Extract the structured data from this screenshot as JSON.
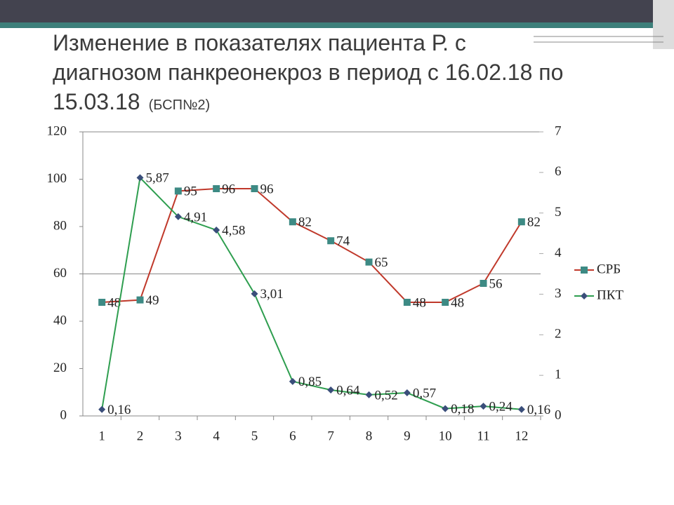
{
  "chart_data": {
    "type": "line",
    "title": "Изменение в показателях пациента Р. с диагнозом панкреонекроз в период с 16.02.18 по 15.03.18",
    "subtitle": "(БСП№2)",
    "categories": [
      "1",
      "2",
      "3",
      "4",
      "5",
      "6",
      "7",
      "8",
      "9",
      "10",
      "11",
      "12"
    ],
    "series": [
      {
        "name": "СРБ",
        "color": "#c0392b",
        "marker_color": "#3d8a84",
        "values": [
          48,
          49,
          95,
          96,
          96,
          82,
          74,
          65,
          48,
          48,
          56,
          82
        ]
      },
      {
        "name": "ПКТ",
        "color": "#2e9e4f",
        "marker_color": "#3a4e7a",
        "axis": "y2",
        "values": [
          0.16,
          5.87,
          4.91,
          4.58,
          3.01,
          0.85,
          0.64,
          0.52,
          0.57,
          0.18,
          0.24,
          0.16
        ],
        "value_labels": [
          "0,16",
          "5,87",
          "4,91",
          "4,58",
          "3,01",
          "0,85",
          "0,64",
          "0,52",
          "0,57",
          "0,18",
          "0,24",
          "0,16"
        ]
      }
    ],
    "ylim": [
      0,
      120
    ],
    "yticks": [
      0,
      20,
      40,
      60,
      80,
      100,
      120
    ],
    "y2lim": [
      0,
      7
    ],
    "y2ticks": [
      0,
      1,
      2,
      3,
      4,
      5,
      6,
      7
    ],
    "gridlines": [
      60,
      120
    ],
    "legend": "right"
  }
}
